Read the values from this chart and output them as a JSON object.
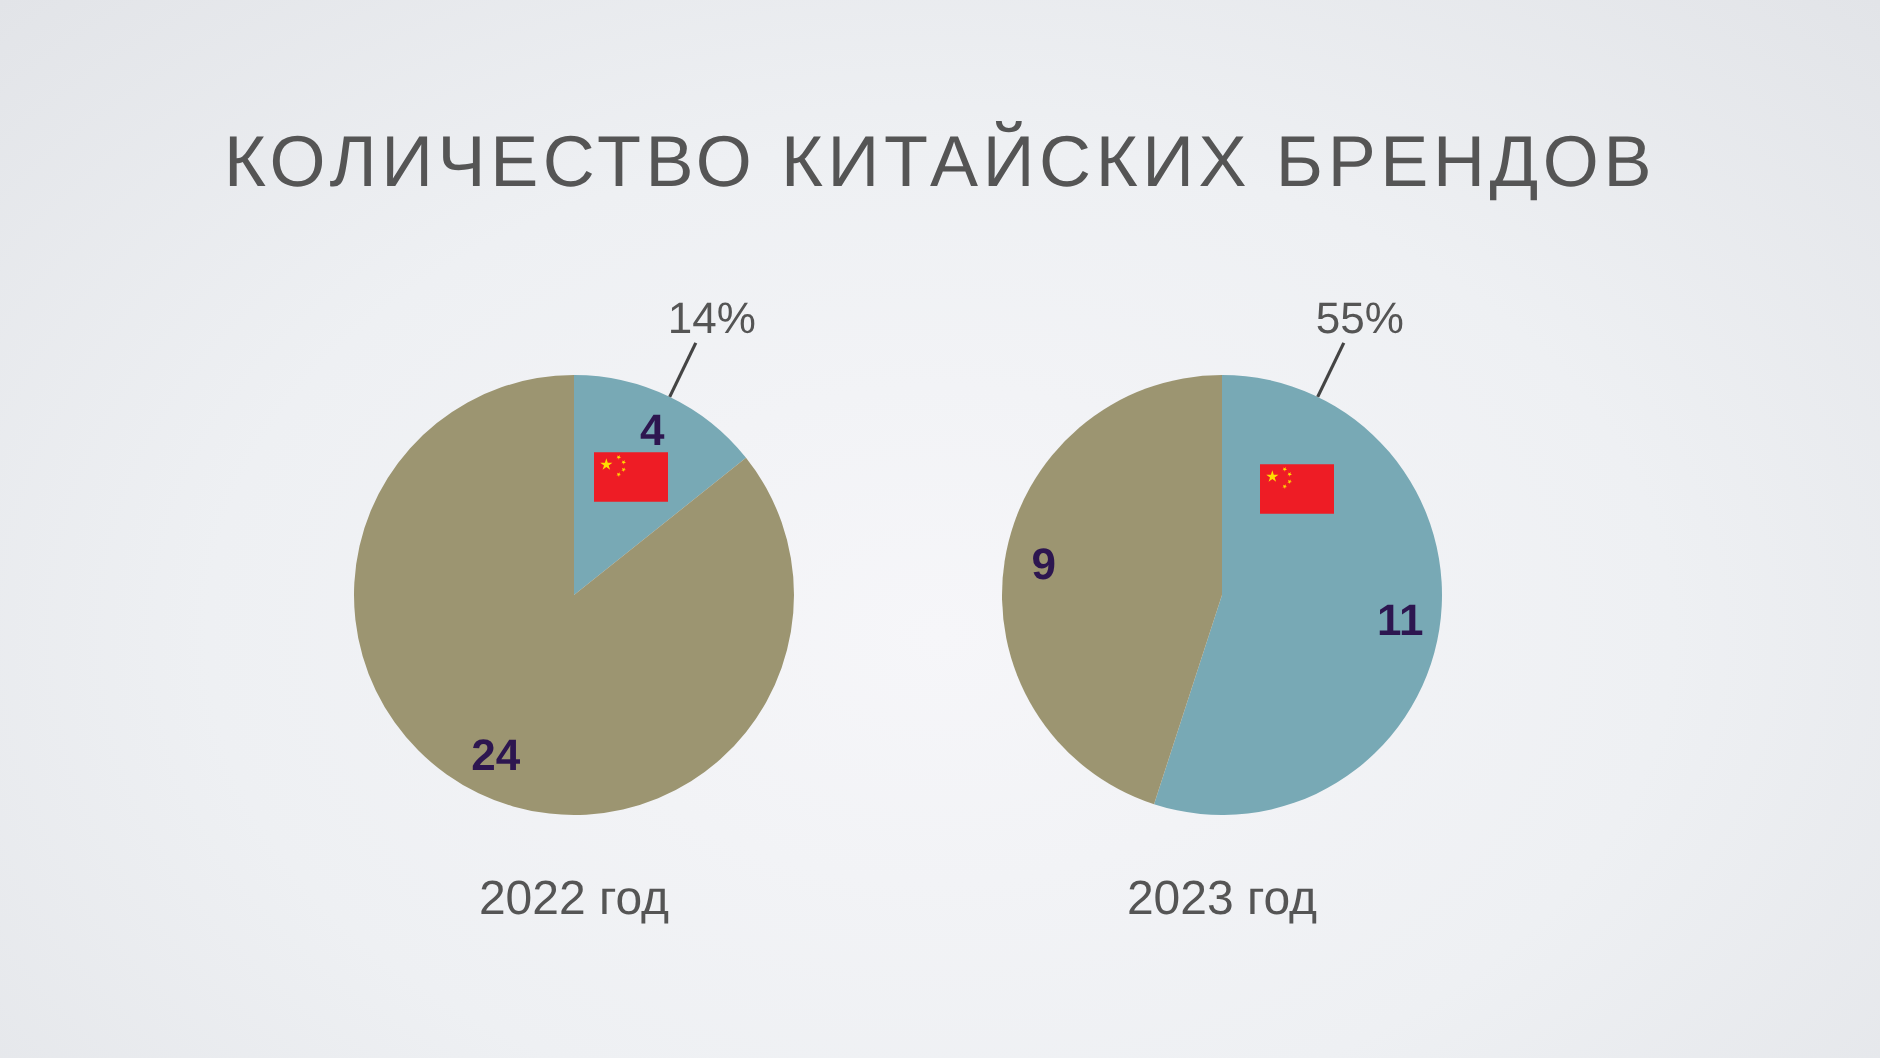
{
  "chart_data": [
    {
      "type": "pie",
      "title": "КОЛИЧЕСТВО КИТАЙСКИХ БРЕНДОВ",
      "xlabel": "2022 год",
      "categories": [
        null,
        null
      ],
      "values": [
        4,
        24
      ],
      "colors": [
        "#78a9b5",
        "#9c9571"
      ],
      "data_labels": true,
      "annotations": [
        "14%"
      ]
    },
    {
      "type": "pie",
      "xlabel": "2023 год",
      "categories": [
        null,
        null
      ],
      "values": [
        11,
        9
      ],
      "colors": [
        "#78a9b5",
        "#9c9571"
      ],
      "data_labels": true,
      "annotations": [
        "55%"
      ]
    }
  ]
}
